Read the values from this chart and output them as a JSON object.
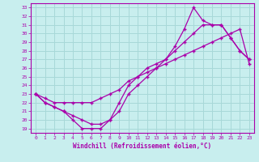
{
  "xlabel": "Windchill (Refroidissement éolien,°C)",
  "bg_color": "#c8eeee",
  "grid_color": "#a8d8d8",
  "line_color": "#aa00aa",
  "xlim": [
    -0.5,
    23.5
  ],
  "ylim": [
    18.5,
    33.5
  ],
  "xticks": [
    0,
    1,
    2,
    3,
    4,
    5,
    6,
    7,
    8,
    9,
    10,
    11,
    12,
    13,
    14,
    15,
    16,
    17,
    18,
    19,
    20,
    21,
    22,
    23
  ],
  "yticks": [
    19,
    20,
    21,
    22,
    23,
    24,
    25,
    26,
    27,
    28,
    29,
    30,
    31,
    32,
    33
  ],
  "curve1_x": [
    0,
    1,
    2,
    3,
    4,
    5,
    6,
    7,
    8,
    9,
    10,
    11,
    12,
    13,
    14,
    15,
    16,
    17,
    18,
    19,
    20,
    21,
    22,
    23
  ],
  "curve1_y": [
    23,
    22,
    21.5,
    21,
    20,
    19,
    19,
    19,
    20,
    22,
    24,
    25,
    26,
    26.5,
    27,
    28.5,
    30.5,
    33,
    31.5,
    31,
    31,
    29.5,
    28,
    27
  ],
  "curve2_x": [
    0,
    1,
    2,
    3,
    4,
    5,
    6,
    7,
    8,
    9,
    10,
    11,
    12,
    13,
    14,
    15,
    16,
    17,
    18,
    19,
    20,
    21,
    22,
    23
  ],
  "curve2_y": [
    23,
    22,
    21.5,
    21,
    20.5,
    20,
    19.5,
    19.5,
    20,
    21,
    23,
    24,
    25,
    26,
    27,
    28,
    29,
    30,
    31,
    31,
    31,
    29.5,
    28,
    27
  ],
  "curve3_x": [
    0,
    1,
    2,
    3,
    4,
    5,
    6,
    7,
    8,
    9,
    10,
    11,
    12,
    13,
    14,
    15,
    16,
    17,
    18,
    19,
    20,
    21,
    22,
    23
  ],
  "curve3_y": [
    23,
    22.5,
    22,
    22,
    22,
    22,
    22,
    22.5,
    23,
    23.5,
    24.5,
    25,
    25.5,
    26,
    26.5,
    27,
    27.5,
    28,
    28.5,
    29,
    29.5,
    30,
    30.5,
    26.5
  ]
}
